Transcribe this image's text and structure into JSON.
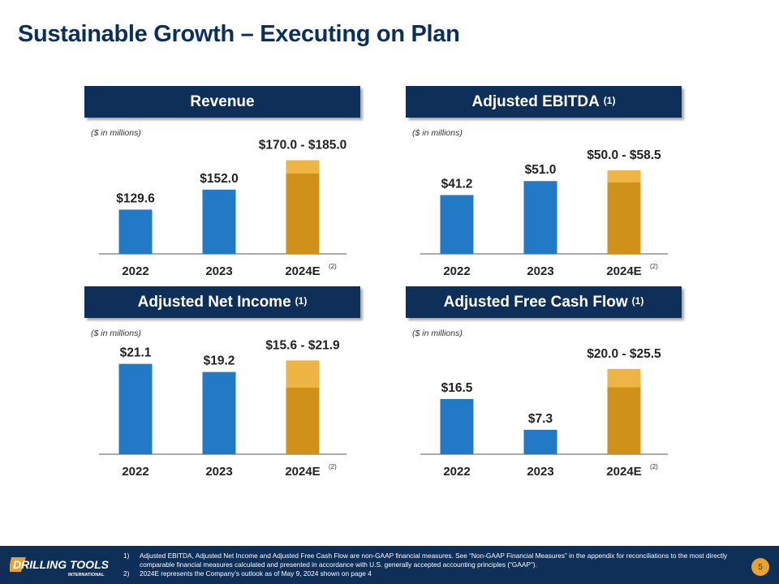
{
  "title": "Sustainable Growth – Executing on Plan",
  "units_label": "($ in millions)",
  "colors": {
    "navy": "#0e2f57",
    "actual_bar": "#2279c6",
    "estimate_low": "#cf9118",
    "estimate_range": "#efb544",
    "axis": "#555555"
  },
  "footnote_marker": "(2)",
  "chart_data": [
    {
      "type": "bar",
      "title": "Revenue",
      "title_sup": "",
      "categories": [
        "2022",
        "2023",
        "2024E"
      ],
      "values": [
        129.6,
        152.0,
        170.0
      ],
      "range_high": [
        null,
        null,
        185.0
      ],
      "labels": [
        "$129.6",
        "$152.0",
        "$170.0 - $185.0"
      ],
      "ylim": [
        80,
        200
      ]
    },
    {
      "type": "bar",
      "title": "Adjusted EBITDA",
      "title_sup": "(1)",
      "categories": [
        "2022",
        "2023",
        "2024E"
      ],
      "values": [
        41.2,
        51.0,
        50.0
      ],
      "range_high": [
        null,
        null,
        58.5
      ],
      "labels": [
        "$41.2",
        "$51.0",
        "$50.0 - $58.5"
      ],
      "ylim": [
        0,
        75
      ]
    },
    {
      "type": "bar",
      "title": "Adjusted Net Income",
      "title_sup": "(1)",
      "categories": [
        "2022",
        "2023",
        "2024E"
      ],
      "values": [
        21.1,
        19.2,
        15.6
      ],
      "range_high": [
        null,
        null,
        21.9
      ],
      "labels": [
        "$21.1",
        "$19.2",
        "$15.6 - $21.9"
      ],
      "ylim": [
        0,
        25
      ]
    },
    {
      "type": "bar",
      "title": "Adjusted Free Cash Flow",
      "title_sup": "(1)",
      "categories": [
        "2022",
        "2023",
        "2024E"
      ],
      "values": [
        16.5,
        7.3,
        20.0
      ],
      "range_high": [
        null,
        null,
        25.5
      ],
      "labels": [
        "$16.5",
        "$7.3",
        "$20.0 - $25.5"
      ],
      "ylim": [
        0,
        32
      ]
    }
  ],
  "footer": {
    "logo_text": "DRILLING TOOLS",
    "logo_sub": "INTERNATIONAL",
    "notes": [
      {
        "num": "1)",
        "text": "Adjusted EBITDA, Adjusted Net Income and Adjusted Free Cash Flow are non-GAAP financial measures. See “Non-GAAP Financial Measures” in the appendix for reconciliations to the most directly comparable financial measures calculated and presented in accordance with U.S. generally accepted accounting principles (“GAAP”)."
      },
      {
        "num": "2)",
        "text": "2024E represents the Company’s outlook as of May 9, 2024 shown on page 4"
      }
    ],
    "page_number": "5"
  }
}
